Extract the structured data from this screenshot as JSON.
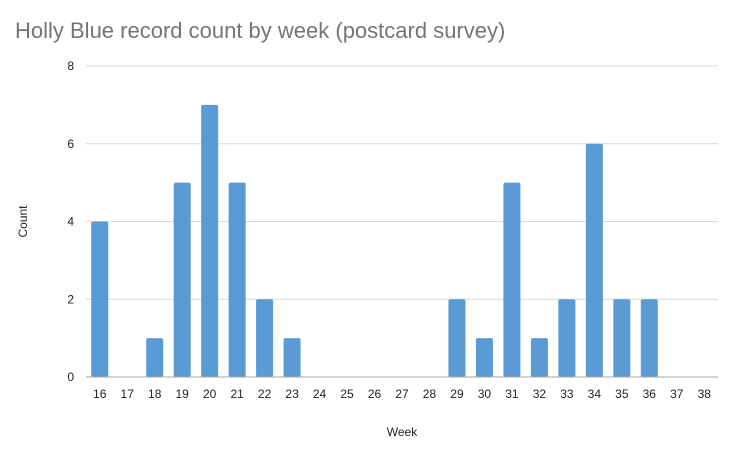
{
  "chart_data": {
    "type": "bar",
    "title": "Holly Blue record count by week (postcard survey)",
    "xlabel": "Week",
    "ylabel": "Count",
    "categories": [
      "16",
      "17",
      "18",
      "19",
      "20",
      "21",
      "22",
      "23",
      "24",
      "25",
      "26",
      "27",
      "28",
      "29",
      "30",
      "31",
      "32",
      "33",
      "34",
      "35",
      "36",
      "37",
      "38"
    ],
    "values": [
      4,
      0,
      1,
      5,
      7,
      5,
      2,
      1,
      0,
      0,
      0,
      0,
      0,
      2,
      1,
      5,
      1,
      2,
      6,
      2,
      2,
      0,
      0
    ],
    "ylim": [
      0,
      8
    ],
    "yticks": [
      0,
      2,
      4,
      6,
      8
    ],
    "grid": true,
    "legend": "none",
    "bar_color": "#5b9bd5",
    "grid_color": "#d9d9d9",
    "axis_color": "#a6a6a6",
    "title_color": "#757575"
  }
}
